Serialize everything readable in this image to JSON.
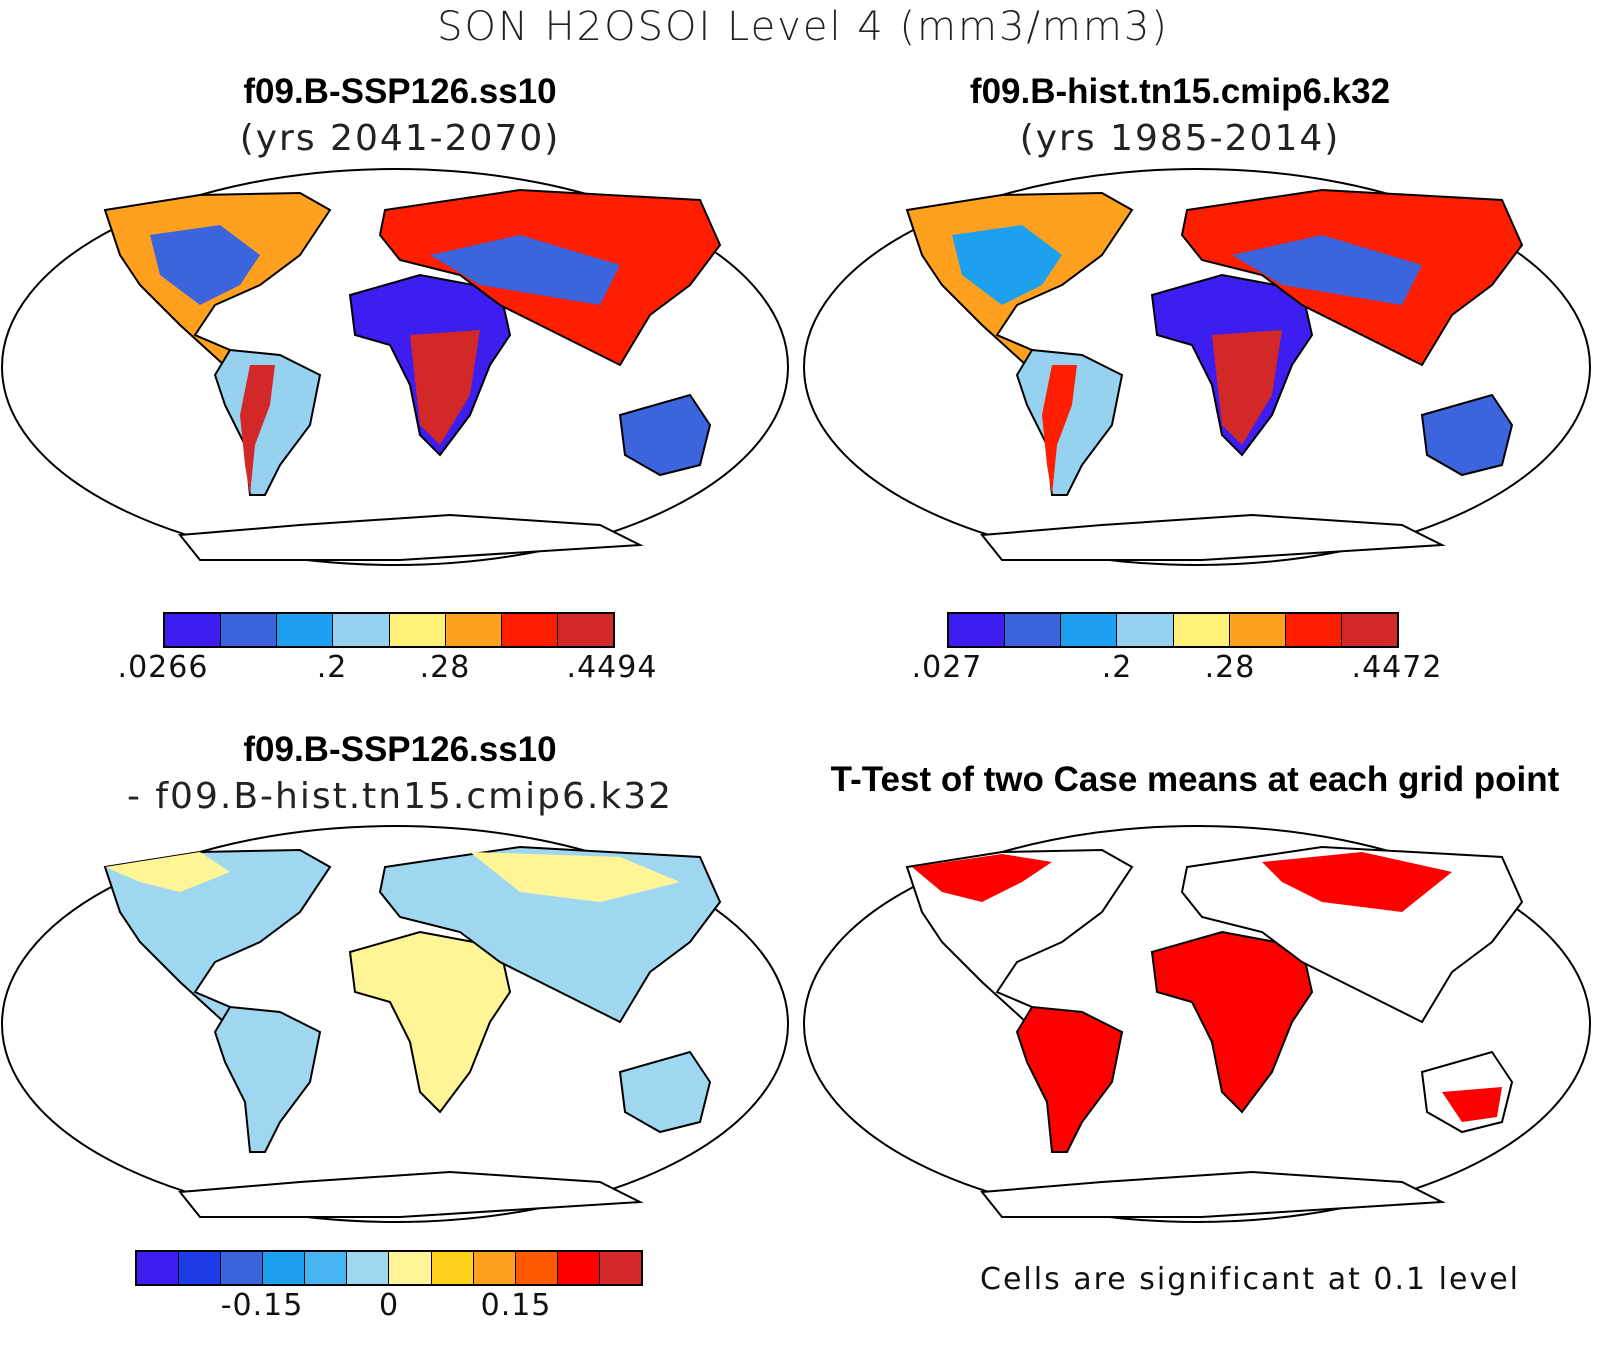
{
  "title": "SON H2OSOI Level 4 (mm3/mm3)",
  "panels": [
    {
      "title": "f09.B-SSP126.ss10",
      "subtitle": "(yrs 2041-2070)",
      "colorbar": {
        "colors": [
          "#3c1ef0",
          "#3c64dc",
          "#1ea0f0",
          "#96d2f0",
          "#fff078",
          "#ffa01e",
          "#ff1e00",
          "#d22828"
        ],
        "labels": [
          ".0266",
          ".2",
          ".28",
          ".4494"
        ]
      }
    },
    {
      "title": "f09.B-hist.tn15.cmip6.k32",
      "subtitle": "(yrs 1985-2014)",
      "colorbar": {
        "colors": [
          "#3c1ef0",
          "#3c64dc",
          "#1ea0f0",
          "#96d2f0",
          "#fff078",
          "#ffa01e",
          "#ff1e00",
          "#d22828"
        ],
        "labels": [
          ".027",
          ".2",
          ".28",
          ".4472"
        ]
      }
    },
    {
      "title": "f09.B-SSP126.ss10",
      "subtitle": "- f09.B-hist.tn15.cmip6.k32",
      "colorbar": {
        "colors": [
          "#3c1ef0",
          "#1e3ce6",
          "#3c64dc",
          "#1ea0f0",
          "#46b4f0",
          "#a0d7f0",
          "#fff596",
          "#ffd21e",
          "#ffa01e",
          "#ff5a00",
          "#ff0000",
          "#d22828"
        ],
        "labels": [
          "-0.15",
          "0",
          "0.15"
        ]
      }
    },
    {
      "title": "T-Test of two Case means at each grid point",
      "note": "Cells are significant at 0.1 level",
      "color": "#ff0000"
    }
  ]
}
